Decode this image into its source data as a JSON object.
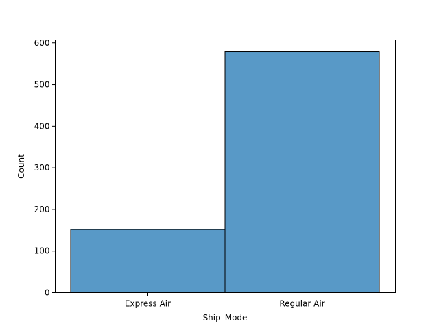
{
  "chart_data": {
    "type": "bar",
    "title": "",
    "xlabel": "Ship_Mode",
    "ylabel": "Count",
    "categories": [
      "Express Air",
      "Regular Air"
    ],
    "values": [
      152,
      579
    ],
    "ylim": [
      0,
      607
    ],
    "yticks": [
      0,
      100,
      200,
      300,
      400,
      500,
      600
    ],
    "grid": false,
    "legend": "none",
    "bar_color": "#5899c7",
    "edge_color": "#000000"
  }
}
